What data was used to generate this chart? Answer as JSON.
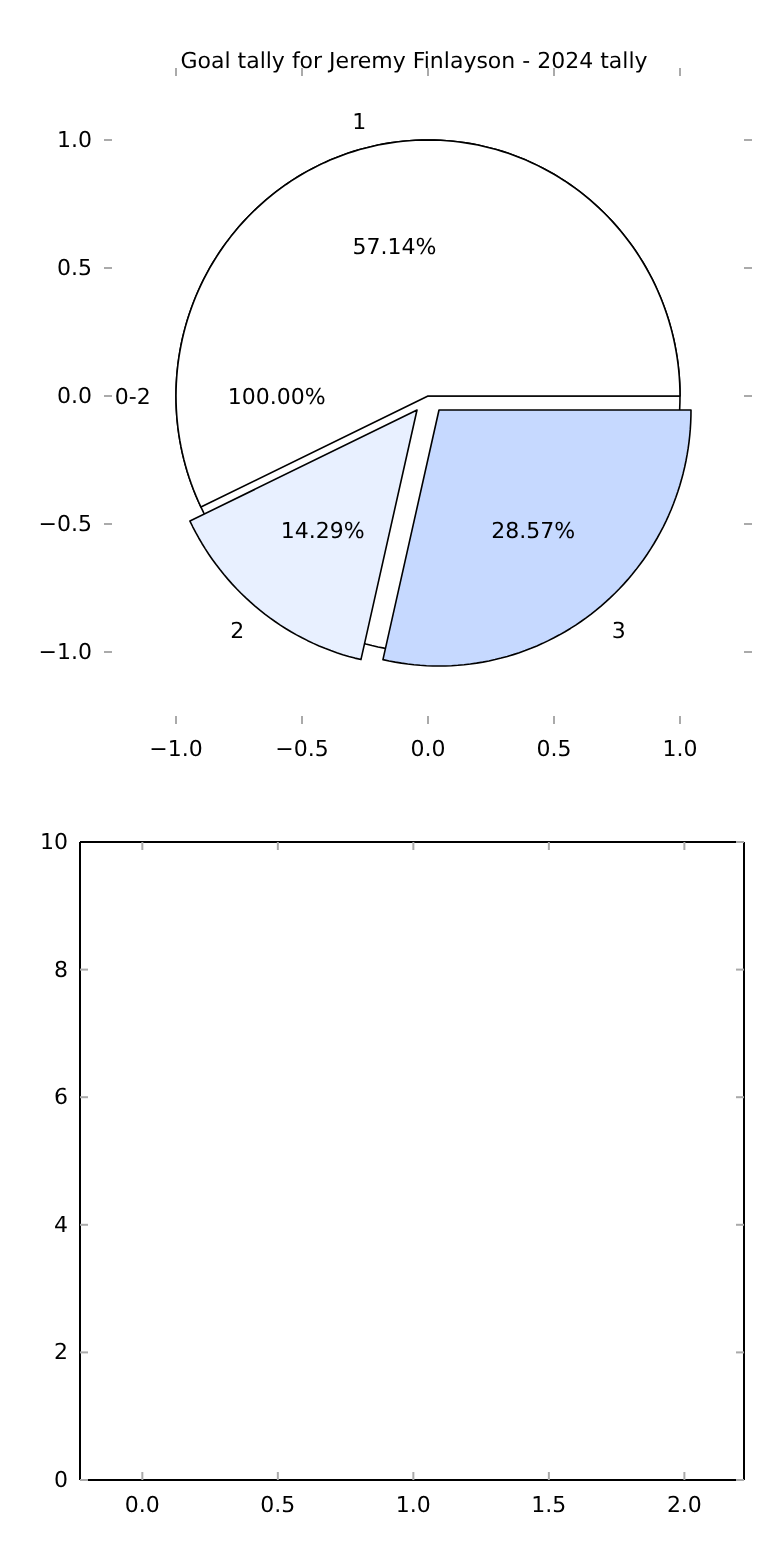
{
  "chart_data": [
    {
      "type": "pie",
      "title": "Goal tally for Jeremy Finlayson - 2024 tally",
      "categories": [
        "1",
        "2",
        "3"
      ],
      "values": [
        57.14,
        14.29,
        28.57
      ],
      "colors": [
        "#ffffff",
        "#e8f0ff",
        "#c6d9ff"
      ],
      "value_labels": [
        "57.14%",
        "14.29%",
        "28.57%"
      ]
    },
    {
      "type": "pie",
      "categories": [
        "0-2"
      ],
      "values": [
        100
      ],
      "colors": [
        "#ffffff"
      ],
      "value_labels": [
        "100.00%"
      ]
    },
    {
      "type": "scatter",
      "xlim": [
        -1,
        1
      ],
      "xticks": [
        {
          "value": -1,
          "label": "−1.0"
        },
        {
          "value": -0.5,
          "label": "−0.5"
        },
        {
          "value": 0,
          "label": "0.0"
        },
        {
          "value": 0.5,
          "label": "0.5"
        },
        {
          "value": 1,
          "label": "1.0"
        }
      ],
      "ylim": [
        -1,
        1
      ],
      "yticks": [
        {
          "value": -1,
          "label": "−1.0"
        },
        {
          "value": -0.5,
          "label": "−0.5"
        },
        {
          "value": 0,
          "label": "0.0"
        },
        {
          "value": 0.5,
          "label": "0.5"
        },
        {
          "value": 1,
          "label": "1.0"
        }
      ]
    },
    {
      "type": "scatter",
      "xlim": [
        -0.23,
        2.22
      ],
      "xticks": [
        {
          "value": 0,
          "label": "0.0"
        },
        {
          "value": 0.5,
          "label": "0.5"
        },
        {
          "value": 1,
          "label": "1.0"
        },
        {
          "value": 1.5,
          "label": "1.5"
        },
        {
          "value": 2,
          "label": "2.0"
        }
      ],
      "ylim": [
        0,
        10
      ],
      "yticks": [
        0,
        2,
        4,
        6,
        8,
        10
      ]
    }
  ]
}
